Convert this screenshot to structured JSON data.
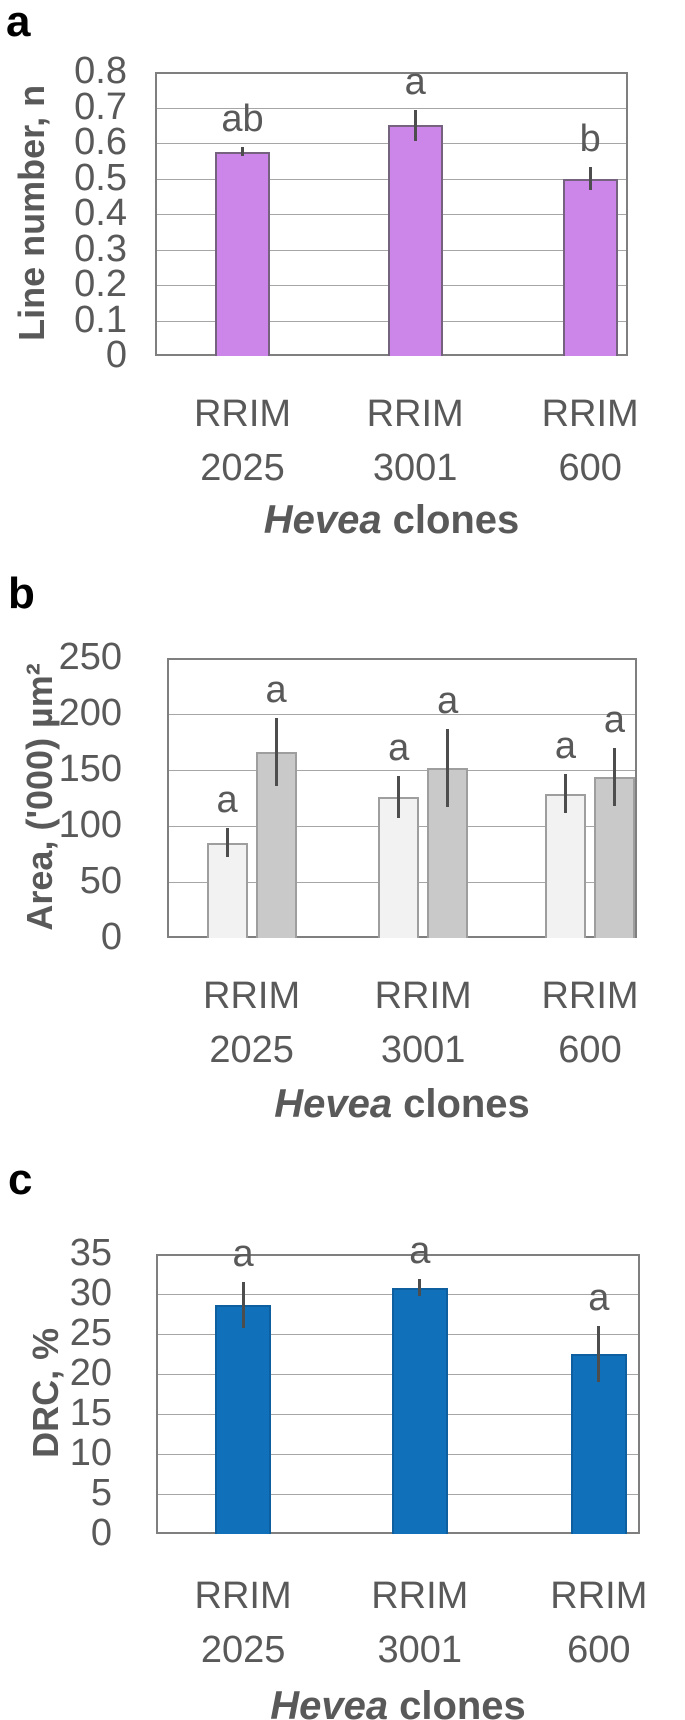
{
  "figure": {
    "background": "#ffffff",
    "text_color": "#595959",
    "grid_color": "#a6a6a6",
    "plot_border_color": "#7f7f7f",
    "error_bar_color": "#4d4d4d",
    "panel_label_color": "#000000"
  },
  "panels": [
    {
      "label": "a",
      "ylabel": "Line number, n",
      "xlabel_italic": "Hevea",
      "xlabel_regular": "clones",
      "yticks": [
        "0.8",
        "0.7",
        "0.6",
        "0.5",
        "0.4",
        "0.3",
        "0.2",
        "0.1",
        "0"
      ],
      "categories_line1": [
        "RRIM",
        "RRIM",
        "RRIM"
      ],
      "categories_line2": [
        "2025",
        "3001",
        "600"
      ]
    },
    {
      "label": "b",
      "ylabel": "Area, ('000) µm²",
      "xlabel_italic": "Hevea",
      "xlabel_regular": "clones",
      "yticks": [
        "250",
        "200",
        "150",
        "100",
        "50",
        "0"
      ],
      "categories_line1": [
        "RRIM",
        "RRIM",
        "RRIM"
      ],
      "categories_line2": [
        "2025",
        "3001",
        "600"
      ]
    },
    {
      "label": "c",
      "ylabel": "DRC, %",
      "xlabel_italic": "Hevea",
      "xlabel_regular": "clones",
      "yticks": [
        "35",
        "30",
        "25",
        "20",
        "15",
        "10",
        "5",
        "0"
      ],
      "categories_line1": [
        "RRIM",
        "RRIM",
        "RRIM"
      ],
      "categories_line2": [
        "2025",
        "3001",
        "600"
      ]
    }
  ],
  "chart_data": [
    {
      "id": "a",
      "type": "bar",
      "title": "",
      "xlabel": "Hevea clones",
      "ylabel": "Line number, n",
      "categories": [
        "RRIM 2025",
        "RRIM 3001",
        "RRIM 600"
      ],
      "ylim": [
        0,
        0.8
      ],
      "ytick_step": 0.1,
      "grid": "horizontal",
      "legend": false,
      "series": [
        {
          "name": "line number",
          "color": "#cc86e9",
          "border_color": "#75627f",
          "values": [
            0.575,
            0.65,
            0.5
          ],
          "errors": [
            0.013,
            0.044,
            0.033
          ],
          "sig_letters": [
            "ab",
            "a",
            "b"
          ]
        }
      ]
    },
    {
      "id": "b",
      "type": "bar",
      "title": "",
      "xlabel": "Hevea clones",
      "ylabel": "Area, ('000) µm²",
      "categories": [
        "RRIM 2025",
        "RRIM 3001",
        "RRIM 600"
      ],
      "ylim": [
        0,
        250
      ],
      "ytick_step": 50,
      "grid": "horizontal",
      "legend": false,
      "series": [
        {
          "name": "series 1 (light grey)",
          "color": "#f2f2f2",
          "border_color": "#9e9e9e",
          "values": [
            85,
            126,
            129
          ],
          "errors": [
            13,
            19,
            17
          ],
          "sig_letters": [
            "a",
            "a",
            "a"
          ]
        },
        {
          "name": "series 2 (dark grey)",
          "color": "#c9c9c9",
          "border_color": "#9e9e9e",
          "values": [
            166,
            152,
            144
          ],
          "errors": [
            30,
            35,
            26
          ],
          "sig_letters": [
            "a",
            "a",
            "a"
          ]
        }
      ]
    },
    {
      "id": "c",
      "type": "bar",
      "title": "",
      "xlabel": "Hevea clones",
      "ylabel": "DRC, %",
      "categories": [
        "RRIM 2025",
        "RRIM 3001",
        "RRIM 600"
      ],
      "ylim": [
        0,
        35
      ],
      "ytick_step": 5,
      "grid": "horizontal",
      "legend": false,
      "series": [
        {
          "name": "DRC",
          "color": "#1070ba",
          "border_color": "#0d5fa0",
          "values": [
            28.6,
            30.8,
            22.5
          ],
          "errors": [
            2.9,
            1.1,
            3.5
          ],
          "sig_letters": [
            "a",
            "a",
            "a"
          ]
        }
      ]
    }
  ]
}
